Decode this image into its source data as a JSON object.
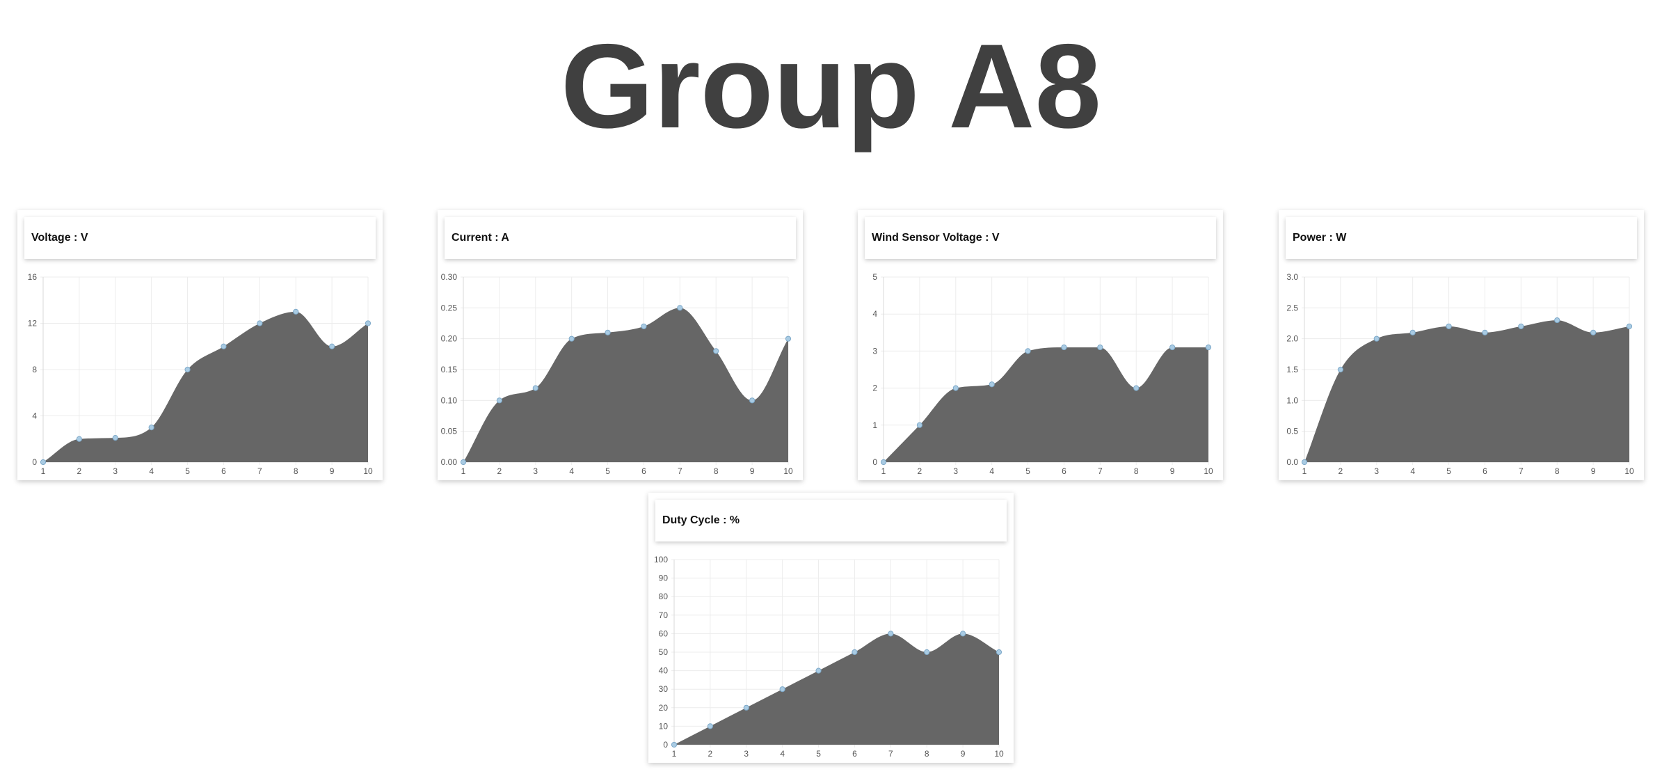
{
  "page": {
    "title": "Group A8"
  },
  "colors": {
    "area_fill": "#666666",
    "point": "#a9cbe3",
    "point_stroke": "#7ea9c9",
    "grid": "#ececec",
    "axis": "#d9d9d9",
    "title_text": "#404040"
  },
  "chart_data": [
    {
      "type": "area",
      "title": "Voltage : V",
      "x": [
        1,
        2,
        3,
        4,
        5,
        6,
        7,
        8,
        9,
        10
      ],
      "values": [
        0,
        2,
        2.1,
        3,
        8,
        10,
        12,
        13,
        10,
        12
      ],
      "ylim": [
        0,
        16
      ],
      "yticks": [
        "0",
        "4",
        "8",
        "12",
        "16"
      ],
      "xticks": [
        "1",
        "2",
        "3",
        "4",
        "5",
        "6",
        "7",
        "8",
        "9",
        "10"
      ],
      "grid": true
    },
    {
      "type": "area",
      "title": "Current : A",
      "x": [
        1,
        2,
        3,
        4,
        5,
        6,
        7,
        8,
        9,
        10
      ],
      "values": [
        0,
        0.1,
        0.12,
        0.2,
        0.21,
        0.22,
        0.25,
        0.18,
        0.1,
        0.2
      ],
      "ylim": [
        0,
        0.3
      ],
      "yticks": [
        "0.00",
        "0.05",
        "0.10",
        "0.15",
        "0.20",
        "0.25",
        "0.30"
      ],
      "xticks": [
        "1",
        "2",
        "3",
        "4",
        "5",
        "6",
        "7",
        "8",
        "9",
        "10"
      ],
      "grid": true
    },
    {
      "type": "area",
      "title": "Wind Sensor Voltage : V",
      "x": [
        1,
        2,
        3,
        4,
        5,
        6,
        7,
        8,
        9,
        10
      ],
      "values": [
        0,
        1,
        2,
        2.1,
        3,
        3.1,
        3.1,
        2,
        3.1,
        3.1
      ],
      "ylim": [
        0,
        5
      ],
      "yticks": [
        "0",
        "1",
        "2",
        "3",
        "4",
        "5"
      ],
      "xticks": [
        "1",
        "2",
        "3",
        "4",
        "5",
        "6",
        "7",
        "8",
        "9",
        "10"
      ],
      "grid": true
    },
    {
      "type": "area",
      "title": "Power : W",
      "x": [
        1,
        2,
        3,
        4,
        5,
        6,
        7,
        8,
        9,
        10
      ],
      "values": [
        0,
        1.5,
        2,
        2.1,
        2.2,
        2.1,
        2.2,
        2.3,
        2.1,
        2.2
      ],
      "ylim": [
        0,
        3
      ],
      "yticks": [
        "0.0",
        "0.5",
        "1.0",
        "1.5",
        "2.0",
        "2.5",
        "3.0"
      ],
      "xticks": [
        "1",
        "2",
        "3",
        "4",
        "5",
        "6",
        "7",
        "8",
        "9",
        "10"
      ],
      "grid": true
    },
    {
      "type": "area",
      "title": "Duty Cycle : %",
      "x": [
        1,
        2,
        3,
        4,
        5,
        6,
        7,
        8,
        9,
        10
      ],
      "values": [
        0,
        10,
        20,
        30,
        40,
        50,
        60,
        50,
        60,
        50
      ],
      "ylim": [
        0,
        100
      ],
      "yticks": [
        "0",
        "10",
        "20",
        "30",
        "40",
        "50",
        "60",
        "70",
        "80",
        "90",
        "100"
      ],
      "xticks": [
        "1",
        "2",
        "3",
        "4",
        "5",
        "6",
        "7",
        "8",
        "9",
        "10"
      ],
      "grid": true
    }
  ]
}
